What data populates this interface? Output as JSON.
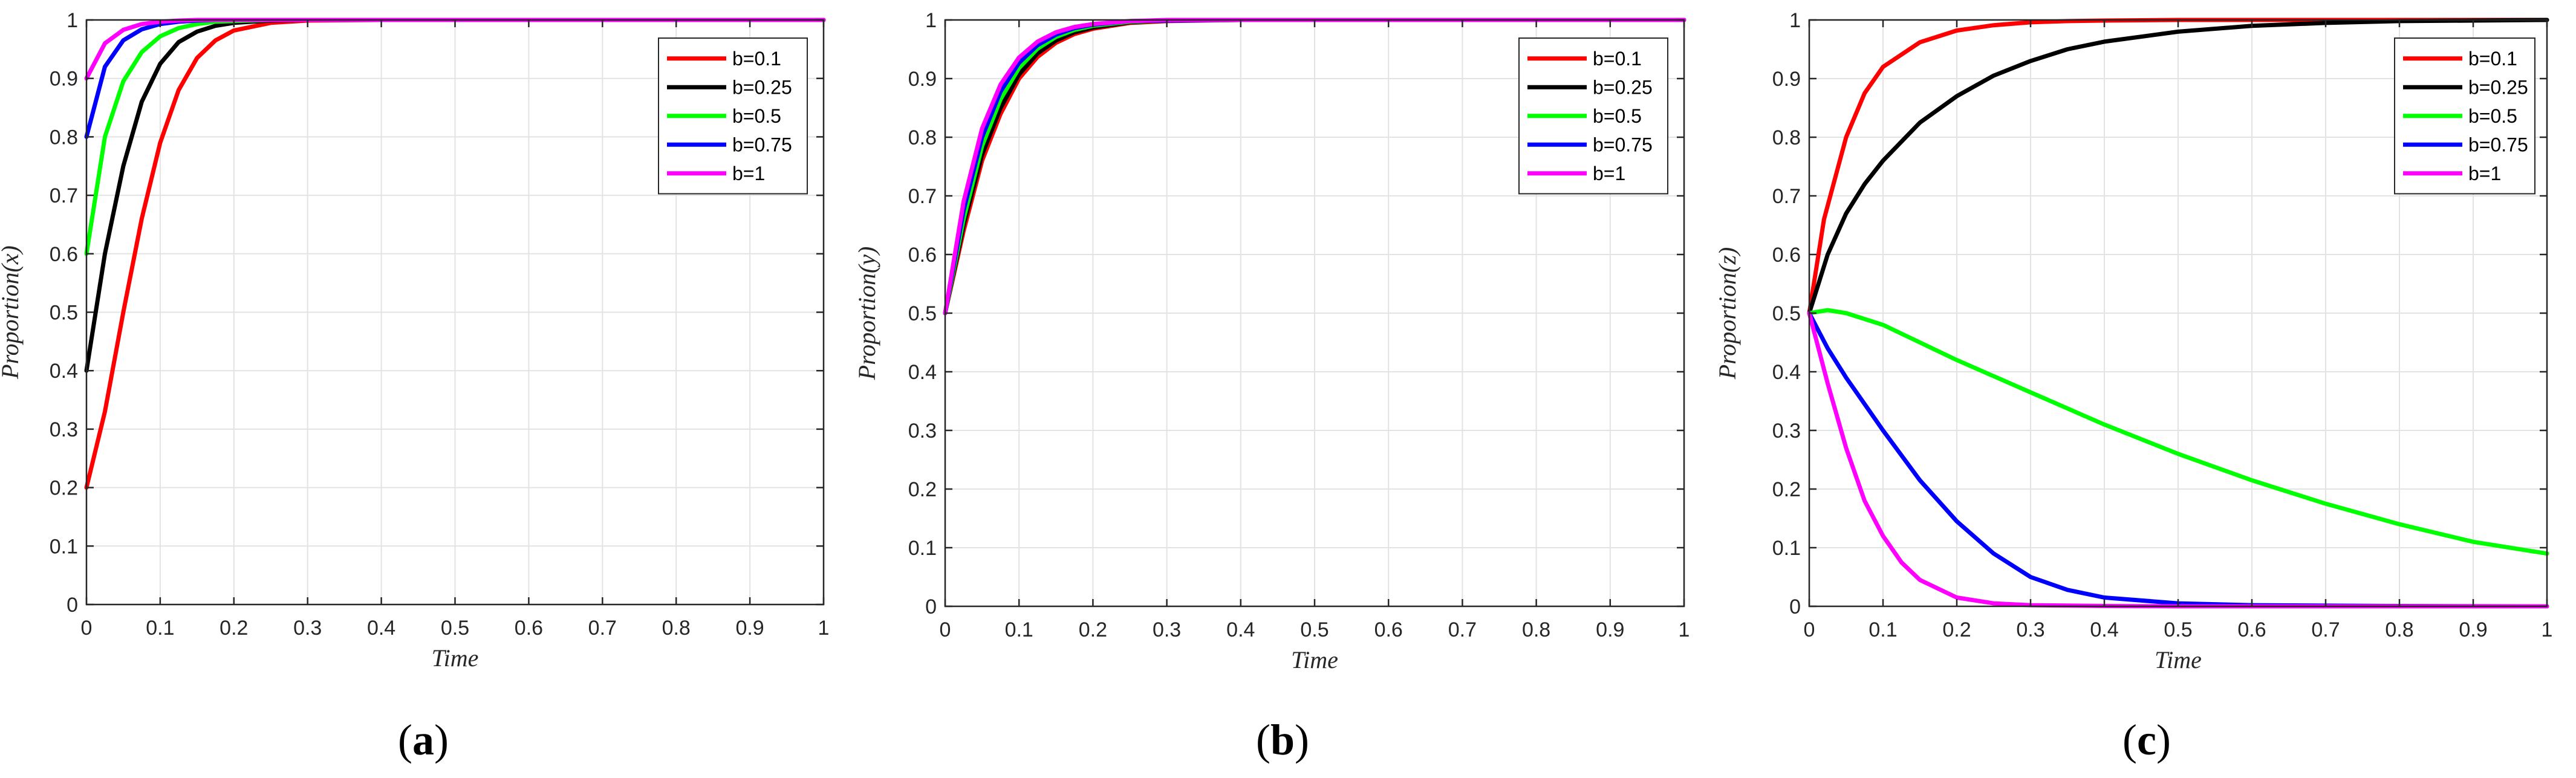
{
  "chart_data": [
    {
      "type": "line",
      "panel": "a",
      "xlabel": "Time",
      "ylabel": "Proportion(x)",
      "xlim": [
        0,
        1
      ],
      "ylim": [
        0,
        1
      ],
      "xticks": [
        "0",
        "0.1",
        "0.2",
        "0.3",
        "0.4",
        "0.5",
        "0.6",
        "0.7",
        "0.8",
        "0.9",
        "1"
      ],
      "yticks": [
        "0",
        "0.1",
        "0.2",
        "0.3",
        "0.4",
        "0.5",
        "0.6",
        "0.7",
        "0.8",
        "0.9",
        "1"
      ],
      "grid": true,
      "legend_position": "top-right",
      "series": [
        {
          "name": "b=0.1",
          "color": "#ff0000",
          "x": [
            0,
            0.025,
            0.05,
            0.075,
            0.1,
            0.125,
            0.15,
            0.175,
            0.2,
            0.25,
            0.3,
            0.4,
            0.5,
            0.75,
            1
          ],
          "y": [
            0.2,
            0.33,
            0.5,
            0.66,
            0.79,
            0.88,
            0.935,
            0.965,
            0.982,
            0.995,
            0.999,
            1,
            1,
            1,
            1
          ]
        },
        {
          "name": "b=0.25",
          "color": "#000000",
          "x": [
            0,
            0.025,
            0.05,
            0.075,
            0.1,
            0.125,
            0.15,
            0.175,
            0.2,
            0.25,
            0.3,
            0.4,
            0.5,
            0.75,
            1
          ],
          "y": [
            0.4,
            0.6,
            0.75,
            0.86,
            0.925,
            0.962,
            0.98,
            0.99,
            0.995,
            0.999,
            1,
            1,
            1,
            1,
            1
          ]
        },
        {
          "name": "b=0.5",
          "color": "#00ff00",
          "x": [
            0,
            0.025,
            0.05,
            0.075,
            0.1,
            0.125,
            0.15,
            0.175,
            0.2,
            0.25,
            0.3,
            0.4,
            0.5,
            0.75,
            1
          ],
          "y": [
            0.6,
            0.8,
            0.895,
            0.945,
            0.972,
            0.986,
            0.993,
            0.997,
            0.998,
            1,
            1,
            1,
            1,
            1,
            1
          ]
        },
        {
          "name": "b=0.75",
          "color": "#0000ff",
          "x": [
            0,
            0.025,
            0.05,
            0.075,
            0.1,
            0.125,
            0.15,
            0.175,
            0.2,
            0.25,
            0.3,
            0.4,
            0.5,
            0.75,
            1
          ],
          "y": [
            0.8,
            0.92,
            0.965,
            0.984,
            0.993,
            0.997,
            0.999,
            1,
            1,
            1,
            1,
            1,
            1,
            1,
            1
          ]
        },
        {
          "name": "b=1",
          "color": "#ff00ff",
          "x": [
            0,
            0.025,
            0.05,
            0.075,
            0.1,
            0.125,
            0.15,
            0.175,
            0.2,
            0.25,
            0.3,
            0.4,
            0.5,
            0.75,
            1
          ],
          "y": [
            0.9,
            0.96,
            0.983,
            0.993,
            0.997,
            0.999,
            1,
            1,
            1,
            1,
            1,
            1,
            1,
            1,
            1
          ]
        }
      ]
    },
    {
      "type": "line",
      "panel": "b",
      "xlabel": "Time",
      "ylabel": "Proportion(y)",
      "xlim": [
        0,
        1
      ],
      "ylim": [
        0,
        1
      ],
      "xticks": [
        "0",
        "0.1",
        "0.2",
        "0.3",
        "0.4",
        "0.5",
        "0.6",
        "0.7",
        "0.8",
        "0.9",
        "1"
      ],
      "yticks": [
        "0",
        "0.1",
        "0.2",
        "0.3",
        "0.4",
        "0.5",
        "0.6",
        "0.7",
        "0.8",
        "0.9",
        "1"
      ],
      "grid": true,
      "legend_position": "top-right",
      "series": [
        {
          "name": "b=0.1",
          "color": "#ff0000",
          "x": [
            0,
            0.025,
            0.05,
            0.075,
            0.1,
            0.125,
            0.15,
            0.175,
            0.2,
            0.25,
            0.3,
            0.4,
            0.5,
            0.75,
            1
          ],
          "y": [
            0.5,
            0.64,
            0.76,
            0.84,
            0.9,
            0.937,
            0.961,
            0.976,
            0.985,
            0.995,
            0.998,
            1,
            1,
            1,
            1
          ]
        },
        {
          "name": "b=0.25",
          "color": "#000000",
          "x": [
            0,
            0.025,
            0.05,
            0.075,
            0.1,
            0.125,
            0.15,
            0.175,
            0.2,
            0.25,
            0.3,
            0.4,
            0.5,
            0.75,
            1
          ],
          "y": [
            0.5,
            0.65,
            0.77,
            0.85,
            0.907,
            0.943,
            0.965,
            0.979,
            0.987,
            0.996,
            0.999,
            1,
            1,
            1,
            1
          ]
        },
        {
          "name": "b=0.5",
          "color": "#00ff00",
          "x": [
            0,
            0.025,
            0.05,
            0.075,
            0.1,
            0.125,
            0.15,
            0.175,
            0.2,
            0.25,
            0.3,
            0.4,
            0.5,
            0.75,
            1
          ],
          "y": [
            0.5,
            0.66,
            0.785,
            0.865,
            0.918,
            0.951,
            0.971,
            0.983,
            0.99,
            0.997,
            0.999,
            1,
            1,
            1,
            1
          ]
        },
        {
          "name": "b=0.75",
          "color": "#0000ff",
          "x": [
            0,
            0.025,
            0.05,
            0.075,
            0.1,
            0.125,
            0.15,
            0.175,
            0.2,
            0.25,
            0.3,
            0.4,
            0.5,
            0.75,
            1
          ],
          "y": [
            0.5,
            0.675,
            0.8,
            0.878,
            0.927,
            0.957,
            0.975,
            0.986,
            0.992,
            0.998,
            0.999,
            1,
            1,
            1,
            1
          ]
        },
        {
          "name": "b=1",
          "color": "#ff00ff",
          "x": [
            0,
            0.025,
            0.05,
            0.075,
            0.1,
            0.125,
            0.15,
            0.175,
            0.2,
            0.25,
            0.3,
            0.4,
            0.5,
            0.75,
            1
          ],
          "y": [
            0.5,
            0.69,
            0.815,
            0.89,
            0.936,
            0.963,
            0.979,
            0.988,
            0.993,
            0.998,
            1,
            1,
            1,
            1,
            1
          ]
        }
      ]
    },
    {
      "type": "line",
      "panel": "c",
      "xlabel": "Time",
      "ylabel": "Proportion(z)",
      "xlim": [
        0,
        1
      ],
      "ylim": [
        0,
        1
      ],
      "xticks": [
        "0",
        "0.1",
        "0.2",
        "0.3",
        "0.4",
        "0.5",
        "0.6",
        "0.7",
        "0.8",
        "0.9",
        "1"
      ],
      "yticks": [
        "0",
        "0.1",
        "0.2",
        "0.3",
        "0.4",
        "0.5",
        "0.6",
        "0.7",
        "0.8",
        "0.9",
        "1"
      ],
      "grid": true,
      "legend_position": "top-right",
      "series": [
        {
          "name": "b=0.1",
          "color": "#ff0000",
          "x": [
            0,
            0.02,
            0.05,
            0.075,
            0.1,
            0.15,
            0.2,
            0.25,
            0.3,
            0.35,
            0.4,
            0.5,
            0.6,
            0.8,
            1
          ],
          "y": [
            0.5,
            0.66,
            0.8,
            0.875,
            0.92,
            0.962,
            0.982,
            0.991,
            0.996,
            0.998,
            0.999,
            1,
            1,
            1,
            1
          ]
        },
        {
          "name": "b=0.25",
          "color": "#000000",
          "x": [
            0,
            0.025,
            0.05,
            0.075,
            0.1,
            0.15,
            0.2,
            0.25,
            0.3,
            0.35,
            0.4,
            0.5,
            0.6,
            0.7,
            0.8,
            0.9,
            1
          ],
          "y": [
            0.5,
            0.6,
            0.67,
            0.72,
            0.76,
            0.825,
            0.87,
            0.905,
            0.93,
            0.95,
            0.963,
            0.98,
            0.99,
            0.995,
            0.998,
            0.999,
            1
          ]
        },
        {
          "name": "b=0.5",
          "color": "#00ff00",
          "x": [
            0,
            0.025,
            0.05,
            0.1,
            0.15,
            0.2,
            0.3,
            0.4,
            0.5,
            0.6,
            0.7,
            0.8,
            0.9,
            1
          ],
          "y": [
            0.5,
            0.505,
            0.5,
            0.48,
            0.45,
            0.42,
            0.365,
            0.31,
            0.26,
            0.215,
            0.175,
            0.14,
            0.11,
            0.09
          ]
        },
        {
          "name": "b=0.75",
          "color": "#0000ff",
          "x": [
            0,
            0.025,
            0.05,
            0.1,
            0.15,
            0.2,
            0.25,
            0.3,
            0.35,
            0.4,
            0.5,
            0.6,
            0.8,
            1
          ],
          "y": [
            0.5,
            0.44,
            0.39,
            0.3,
            0.215,
            0.145,
            0.09,
            0.05,
            0.028,
            0.015,
            0.005,
            0.002,
            0.0005,
            0
          ]
        },
        {
          "name": "b=1",
          "color": "#ff00ff",
          "x": [
            0,
            0.025,
            0.05,
            0.075,
            0.1,
            0.125,
            0.15,
            0.2,
            0.25,
            0.3,
            0.4,
            0.5,
            1
          ],
          "y": [
            0.5,
            0.38,
            0.27,
            0.18,
            0.12,
            0.075,
            0.045,
            0.015,
            0.005,
            0.002,
            0.0005,
            0,
            0
          ]
        }
      ]
    }
  ],
  "panel_labels": [
    "a",
    "b",
    "c"
  ],
  "panel_label_open": "(",
  "panel_label_close": ")"
}
